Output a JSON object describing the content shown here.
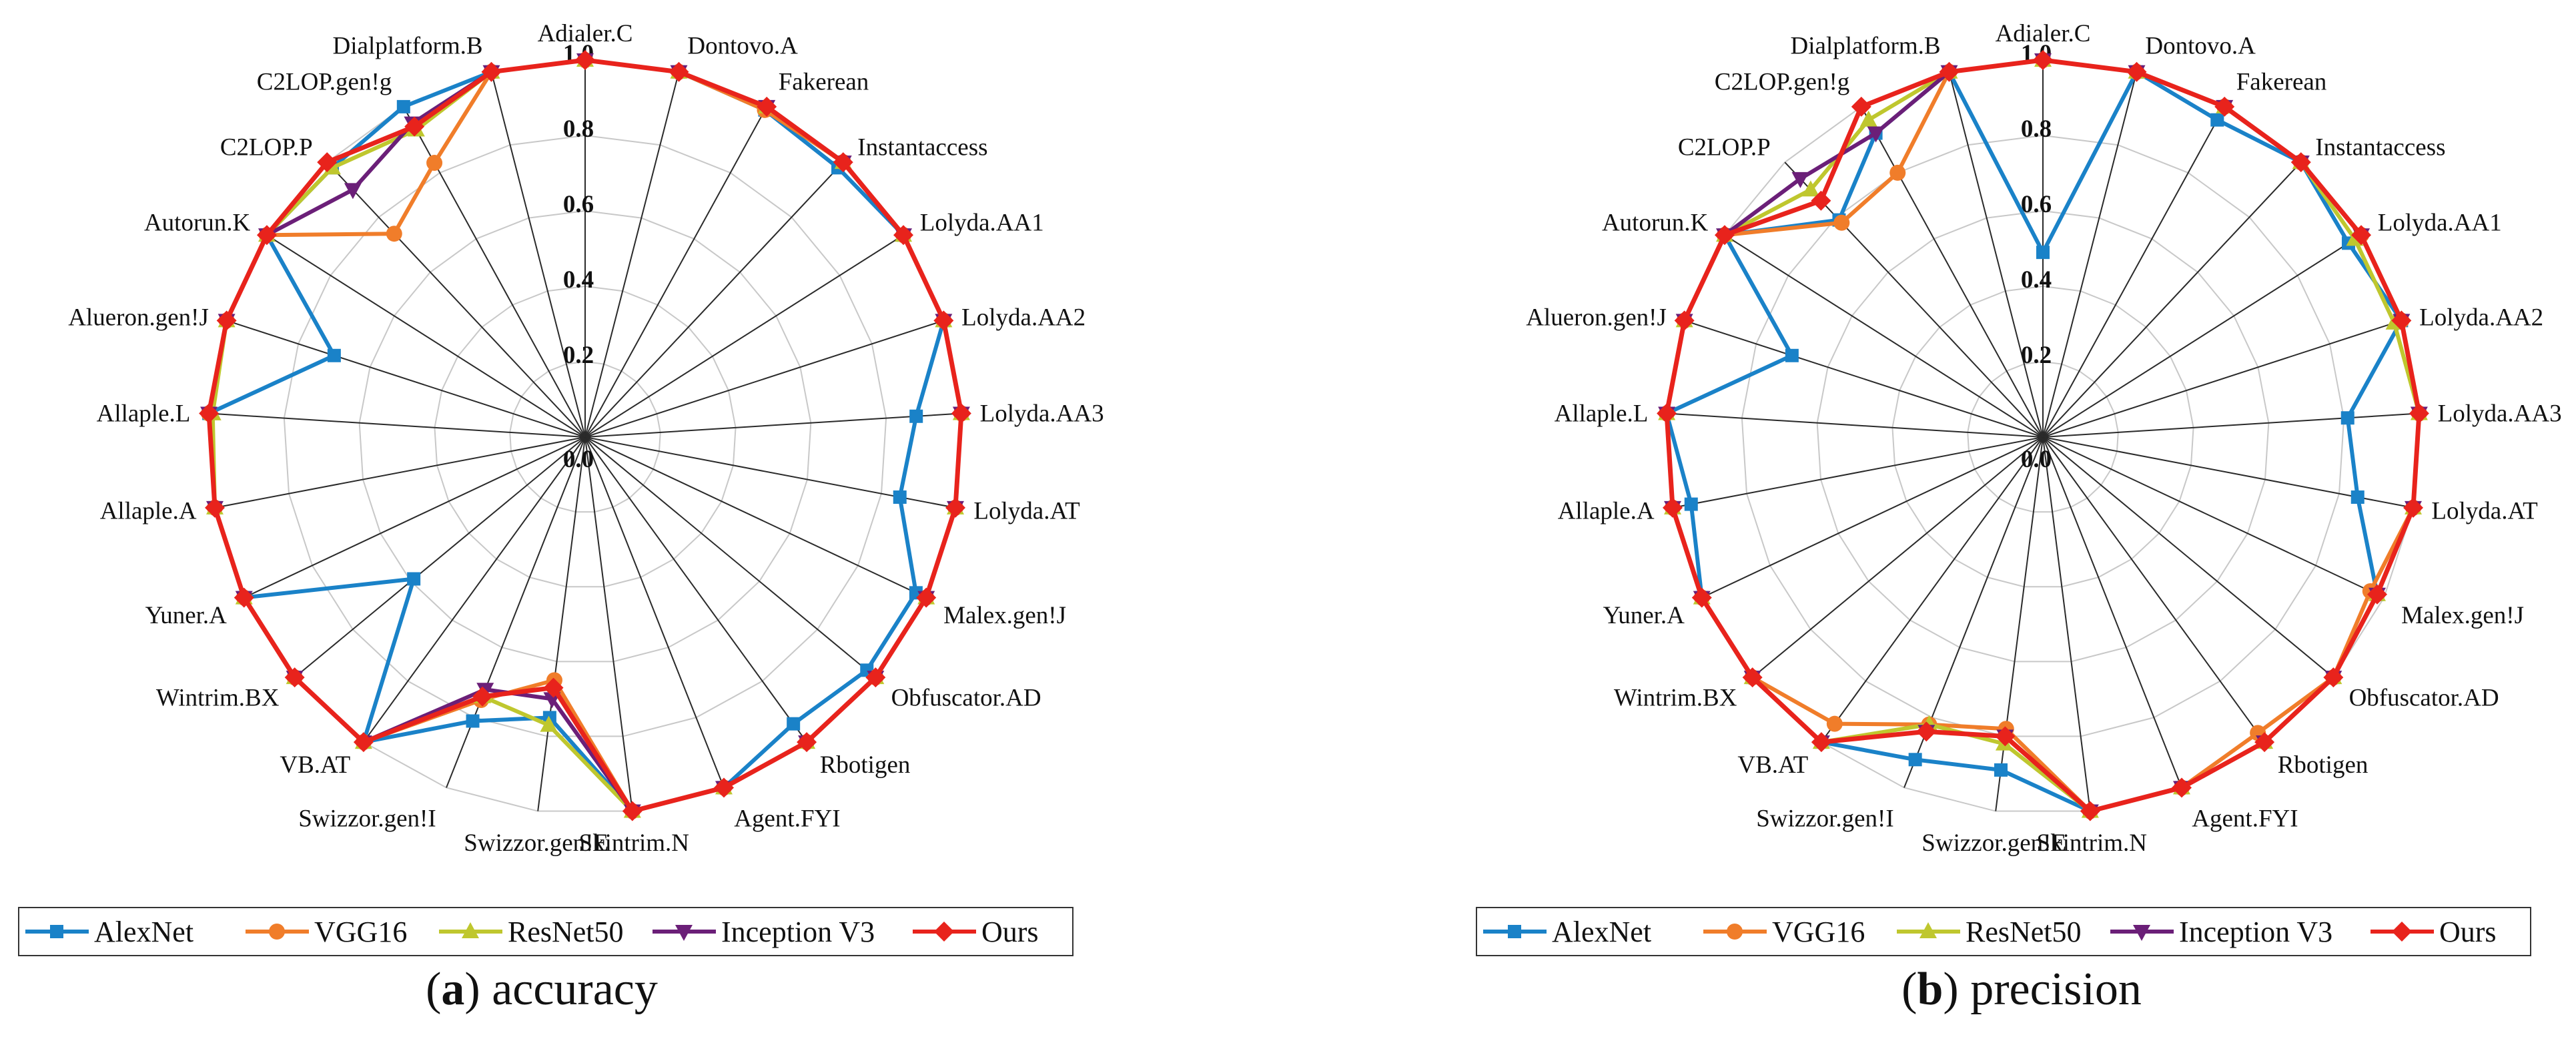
{
  "chart_data": [
    {
      "type": "radar",
      "panel_letter": "a",
      "caption": "accuracy",
      "axis_labels": [
        "Adialer.C",
        "Dontovo.A",
        "Fakerean",
        "Instantaccess",
        "Lolyda.AA1",
        "Lolyda.AA2",
        "Lolyda.AA3",
        "Lolyda.AT",
        "Malex.gen!J",
        "Obfuscator.AD",
        "Rbotigen",
        "Agent.FYI",
        "Skintrim.N",
        "Swizzor.gen!E",
        "Swizzor.gen!I",
        "VB.AT",
        "Wintrim.BX",
        "Yuner.A",
        "Allaple.A",
        "Allaple.L",
        "Alueron.gen!J",
        "Autorun.K",
        "C2LOP.P",
        "C2LOP.gen!g",
        "Dialplatform.B"
      ],
      "rlim": [
        0,
        1
      ],
      "ticks": [
        "0.0",
        "0.2",
        "0.4",
        "0.6",
        "0.8",
        "1.0"
      ],
      "series": [
        {
          "name": "AlexNet",
          "color": "#1a82c8",
          "marker": "square",
          "values": [
            1,
            1,
            0.99,
            0.98,
            1,
            1,
            0.88,
            0.85,
            0.97,
            0.97,
            0.94,
            1,
            1,
            0.75,
            0.81,
            1,
            0.59,
            1,
            1,
            1,
            0.7,
            1,
            0.98,
            1,
            1
          ]
        },
        {
          "name": "VGG16",
          "color": "#f07d2a",
          "marker": "circle",
          "values": [
            1,
            1,
            0.99,
            1,
            1,
            1,
            1,
            1,
            1,
            1,
            1,
            1,
            1,
            0.65,
            0.75,
            1,
            1,
            1,
            1,
            1,
            1,
            1,
            0.74,
            0.83,
            1
          ]
        },
        {
          "name": "ResNet50",
          "color": "#bfc72e",
          "marker": "triangle-up",
          "values": [
            1,
            1,
            1,
            1,
            1,
            1,
            1,
            1,
            1,
            1,
            1,
            1,
            1,
            0.77,
            0.74,
            1,
            1,
            1,
            1,
            0.99,
            1,
            1,
            0.98,
            0.93,
            1
          ]
        },
        {
          "name": "Inception V3",
          "color": "#6b1f78",
          "marker": "triangle-down",
          "values": [
            1,
            1,
            1,
            1,
            1,
            1,
            1,
            1,
            1,
            1,
            1,
            1,
            1,
            0.7,
            0.72,
            1,
            1,
            1,
            1,
            1,
            1,
            1,
            0.9,
            0.95,
            1
          ]
        },
        {
          "name": "Ours",
          "color": "#e8231c",
          "marker": "diamond",
          "values": [
            1,
            1,
            1,
            1,
            1,
            1,
            1,
            1,
            1,
            1,
            1,
            1,
            1,
            0.67,
            0.74,
            1,
            1,
            1,
            1,
            1,
            1,
            1,
            1,
            0.94,
            1
          ]
        }
      ]
    },
    {
      "type": "radar",
      "panel_letter": "b",
      "caption": "precision",
      "axis_labels": [
        "Adialer.C",
        "Dontovo.A",
        "Fakerean",
        "Instantaccess",
        "Lolyda.AA1",
        "Lolyda.AA2",
        "Lolyda.AA3",
        "Lolyda.AT",
        "Malex.gen!J",
        "Obfuscator.AD",
        "Rbotigen",
        "Agent.FYI",
        "Skintrim.N",
        "Swizzor.gen!E",
        "Swizzor.gen!I",
        "VB.AT",
        "Wintrim.BX",
        "Yuner.A",
        "Allaple.A",
        "Allaple.L",
        "Alueron.gen!J",
        "Autorun.K",
        "C2LOP.P",
        "C2LOP.gen!g",
        "Dialplatform.B"
      ],
      "rlim": [
        0,
        1
      ],
      "ticks": [
        "0.0",
        "0.2",
        "0.4",
        "0.6",
        "0.8",
        "1.0"
      ],
      "series": [
        {
          "name": "AlexNet",
          "color": "#1a82c8",
          "marker": "square",
          "values": [
            0.49,
            1,
            0.96,
            1,
            0.96,
            1,
            0.81,
            0.85,
            0.98,
            1,
            1,
            1,
            1,
            0.89,
            0.92,
            1,
            1,
            1,
            0.95,
            1,
            0.7,
            1,
            0.79,
            0.92,
            1
          ]
        },
        {
          "name": "VGG16",
          "color": "#f07d2a",
          "marker": "circle",
          "values": [
            1,
            1,
            1,
            1,
            1,
            1,
            1,
            1,
            0.96,
            1,
            0.97,
            1,
            1,
            0.78,
            0.82,
            0.94,
            1,
            1,
            1,
            1,
            1,
            1,
            0.78,
            0.8,
            1
          ]
        },
        {
          "name": "ResNet50",
          "color": "#bfc72e",
          "marker": "triangle-up",
          "values": [
            1,
            1,
            1,
            1,
            0.98,
            0.98,
            1,
            1,
            0.98,
            1,
            1,
            1,
            1,
            0.82,
            0.82,
            1,
            1,
            1,
            1,
            1,
            1,
            1,
            0.9,
            0.96,
            1
          ]
        },
        {
          "name": "Inception V3",
          "color": "#6b1f78",
          "marker": "triangle-down",
          "values": [
            1,
            1,
            1,
            1,
            1,
            1,
            1,
            1,
            0.98,
            1,
            1,
            1,
            1,
            0.8,
            0.84,
            1,
            1,
            1,
            1,
            1,
            1,
            1,
            0.94,
            0.92,
            1
          ]
        },
        {
          "name": "Ours",
          "color": "#e8231c",
          "marker": "diamond",
          "values": [
            1,
            1,
            1,
            1,
            1,
            1,
            1,
            1,
            0.98,
            1,
            1,
            1,
            1,
            0.8,
            0.84,
            1,
            1,
            1,
            1,
            1,
            1,
            1,
            0.86,
            1,
            1
          ]
        }
      ]
    }
  ]
}
